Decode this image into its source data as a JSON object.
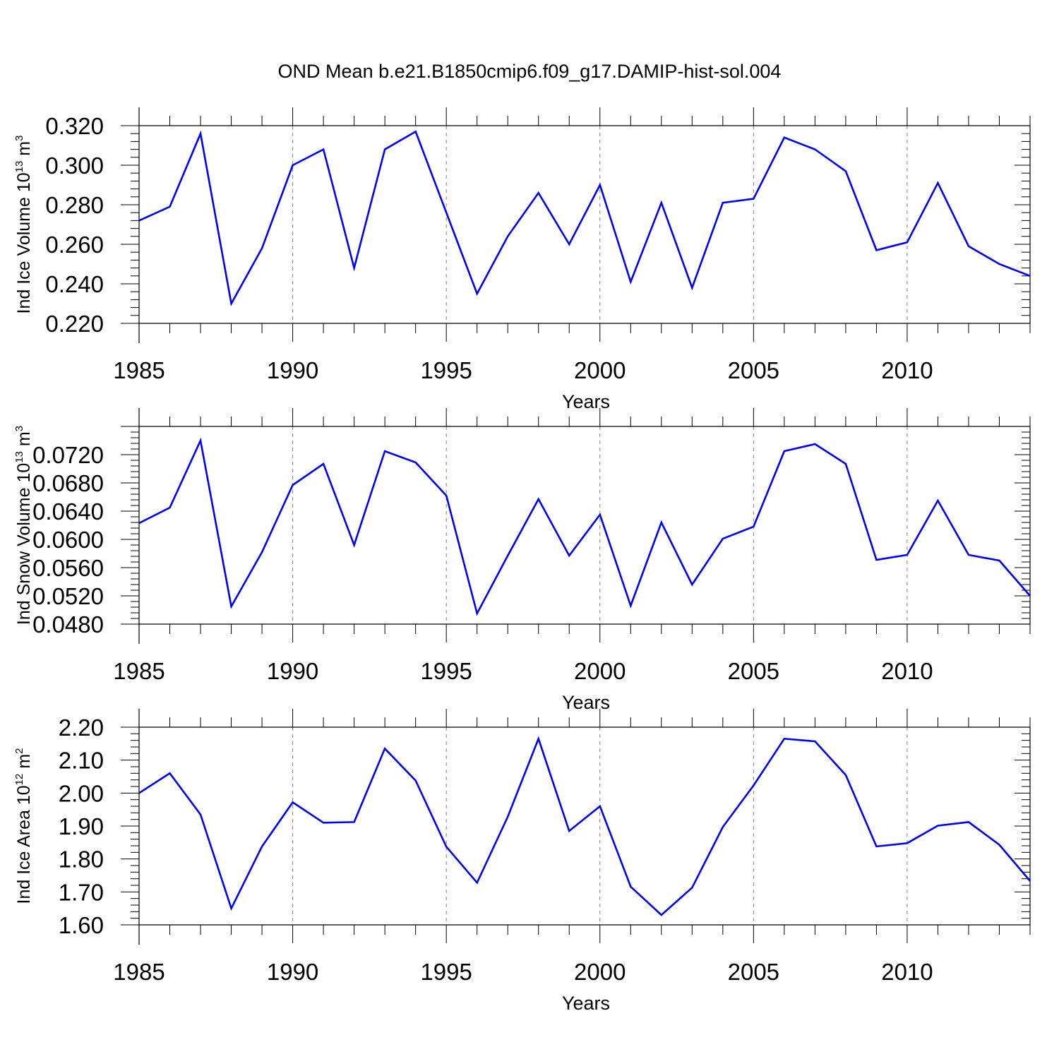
{
  "title": "OND Mean b.e21.B1850cmip6.f09_g17.DAMIP-hist-sol.004",
  "colors": {
    "line": "#0000ff",
    "axis": "#000000",
    "grid": "#808080"
  },
  "chart_data": [
    {
      "type": "line",
      "name": "ice-volume",
      "xlabel": "Years",
      "ylabel": "Ind Ice Volume 10",
      "ylabel_exp": "13",
      "ylabel_unit": "m",
      "ylabel_unit_exp": "3",
      "xlim": [
        1985,
        2014
      ],
      "ylim": [
        0.22,
        0.32
      ],
      "yticks": [
        0.22,
        0.24,
        0.26,
        0.28,
        0.3,
        0.32
      ],
      "ytick_labels": [
        "0.220",
        "0.240",
        "0.260",
        "0.280",
        "0.300",
        "0.320"
      ],
      "xticks": [
        1985,
        1990,
        1995,
        2000,
        2005,
        2010
      ],
      "xtick_labels": [
        "1985",
        "1990",
        "1995",
        "2000",
        "2005",
        "2010"
      ],
      "x": [
        1985,
        1986,
        1987,
        1988,
        1989,
        1990,
        1991,
        1992,
        1993,
        1994,
        1995,
        1996,
        1997,
        1998,
        1999,
        2000,
        2001,
        2002,
        2003,
        2004,
        2005,
        2006,
        2007,
        2008,
        2009,
        2010,
        2011,
        2012,
        2013,
        2014
      ],
      "values": [
        0.272,
        0.279,
        0.316,
        0.23,
        0.258,
        0.3,
        0.308,
        0.248,
        0.308,
        0.317,
        0.276,
        0.235,
        0.264,
        0.286,
        0.26,
        0.29,
        0.241,
        0.281,
        0.238,
        0.281,
        0.283,
        0.314,
        0.308,
        0.297,
        0.257,
        0.261,
        0.291,
        0.259,
        0.25,
        0.244
      ]
    },
    {
      "type": "line",
      "name": "snow-volume",
      "xlabel": "Years",
      "ylabel": "Ind Snow Volume 10",
      "ylabel_exp": "13",
      "ylabel_unit": "m",
      "ylabel_unit_exp": "3",
      "xlim": [
        1985,
        2014
      ],
      "ylim": [
        0.048,
        0.076
      ],
      "yticks": [
        0.048,
        0.052,
        0.056,
        0.06,
        0.064,
        0.068,
        0.072
      ],
      "ytick_labels": [
        "0.0480",
        "0.0520",
        "0.0560",
        "0.0600",
        "0.0640",
        "0.0680",
        "0.0720"
      ],
      "xticks": [
        1985,
        1990,
        1995,
        2000,
        2005,
        2010
      ],
      "xtick_labels": [
        "1985",
        "1990",
        "1995",
        "2000",
        "2005",
        "2010"
      ],
      "x": [
        1985,
        1986,
        1987,
        1988,
        1989,
        1990,
        1991,
        1992,
        1993,
        1994,
        1995,
        1996,
        1997,
        1998,
        1999,
        2000,
        2001,
        2002,
        2003,
        2004,
        2005,
        2006,
        2007,
        2008,
        2009,
        2010,
        2011,
        2012,
        2013,
        2014
      ],
      "values": [
        0.0623,
        0.0645,
        0.074,
        0.0505,
        0.0582,
        0.0677,
        0.0707,
        0.0592,
        0.0725,
        0.0709,
        0.0662,
        0.0495,
        0.0577,
        0.0657,
        0.0577,
        0.0635,
        0.0506,
        0.0624,
        0.0536,
        0.0601,
        0.0618,
        0.0725,
        0.0735,
        0.0707,
        0.0571,
        0.0578,
        0.0655,
        0.0578,
        0.057,
        0.052
      ]
    },
    {
      "type": "line",
      "name": "ice-area",
      "xlabel": "Years",
      "ylabel": "Ind Ice Area 10",
      "ylabel_exp": "12",
      "ylabel_unit": "m",
      "ylabel_unit_exp": "2",
      "xlim": [
        1985,
        2014
      ],
      "ylim": [
        1.6,
        2.2
      ],
      "yticks": [
        1.6,
        1.7,
        1.8,
        1.9,
        2.0,
        2.1,
        2.2
      ],
      "ytick_labels": [
        "1.60",
        "1.70",
        "1.80",
        "1.90",
        "2.00",
        "2.10",
        "2.20"
      ],
      "xticks": [
        1985,
        1990,
        1995,
        2000,
        2005,
        2010
      ],
      "xtick_labels": [
        "1985",
        "1990",
        "1995",
        "2000",
        "2005",
        "2010"
      ],
      "x": [
        1985,
        1986,
        1987,
        1988,
        1989,
        1990,
        1991,
        1992,
        1993,
        1994,
        1995,
        1996,
        1997,
        1998,
        1999,
        2000,
        2001,
        2002,
        2003,
        2004,
        2005,
        2006,
        2007,
        2008,
        2009,
        2010,
        2011,
        2012,
        2013,
        2014
      ],
      "values": [
        2.0,
        2.06,
        1.935,
        1.65,
        1.838,
        1.972,
        1.91,
        1.912,
        2.135,
        2.038,
        1.837,
        1.728,
        1.928,
        2.165,
        1.885,
        1.96,
        1.716,
        1.63,
        1.713,
        1.897,
        2.023,
        2.165,
        2.157,
        2.055,
        1.838,
        1.848,
        1.901,
        1.912,
        1.843,
        1.733
      ]
    }
  ]
}
